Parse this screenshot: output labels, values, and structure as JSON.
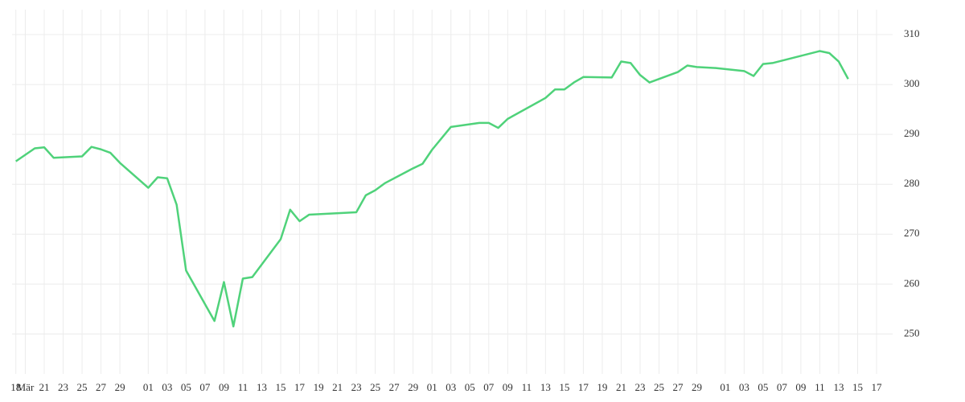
{
  "chart_data": {
    "type": "line",
    "x": [
      0,
      2,
      3,
      4,
      7,
      8,
      9,
      10,
      11,
      14,
      15,
      16,
      17,
      18,
      21,
      22,
      23,
      24,
      25,
      28,
      29,
      30,
      31,
      36,
      37,
      38,
      39,
      42,
      43,
      44,
      46,
      49,
      50,
      51,
      52,
      56,
      57,
      58,
      59,
      60,
      63,
      64,
      65,
      66,
      67,
      70,
      71,
      72,
      74,
      77,
      78,
      79,
      80,
      85,
      86,
      87,
      88
    ],
    "series": [
      {
        "color": "#4fd27a",
        "values": [
          284.6,
          287.2,
          287.4,
          285.3,
          285.6,
          287.5,
          287.0,
          286.3,
          284.3,
          279.3,
          281.4,
          281.2,
          275.9,
          262.7,
          252.6,
          260.4,
          251.5,
          261.1,
          261.4,
          269.0,
          274.9,
          272.6,
          273.9,
          274.4,
          277.8,
          278.8,
          280.2,
          283.2,
          284.1,
          286.9,
          291.5,
          292.3,
          292.3,
          291.3,
          293.1,
          297.3,
          299.0,
          299.0,
          300.4,
          301.5,
          301.4,
          304.6,
          304.3,
          301.9,
          300.4,
          302.5,
          303.8,
          303.5,
          303.3,
          302.7,
          301.7,
          304.1,
          304.3,
          306.7,
          306.3,
          304.6,
          301.1
        ]
      }
    ],
    "xlim": [
      -0.4,
      92.7
    ],
    "xticks": [
      {
        "value": 0,
        "label": "18"
      },
      {
        "value": 1,
        "label": "Mär"
      },
      {
        "value": 3,
        "label": "21"
      },
      {
        "value": 5,
        "label": "23"
      },
      {
        "value": 7,
        "label": "25"
      },
      {
        "value": 9,
        "label": "27"
      },
      {
        "value": 11,
        "label": "29"
      },
      {
        "value": 14,
        "label": "01"
      },
      {
        "value": 16,
        "label": "03"
      },
      {
        "value": 18,
        "label": "05"
      },
      {
        "value": 20,
        "label": "07"
      },
      {
        "value": 22,
        "label": "09"
      },
      {
        "value": 24,
        "label": "11"
      },
      {
        "value": 26,
        "label": "13"
      },
      {
        "value": 28,
        "label": "15"
      },
      {
        "value": 30,
        "label": "17"
      },
      {
        "value": 32,
        "label": "19"
      },
      {
        "value": 34,
        "label": "21"
      },
      {
        "value": 36,
        "label": "23"
      },
      {
        "value": 38,
        "label": "25"
      },
      {
        "value": 40,
        "label": "27"
      },
      {
        "value": 42,
        "label": "29"
      },
      {
        "value": 44,
        "label": "01"
      },
      {
        "value": 46,
        "label": "03"
      },
      {
        "value": 48,
        "label": "05"
      },
      {
        "value": 50,
        "label": "07"
      },
      {
        "value": 52,
        "label": "09"
      },
      {
        "value": 54,
        "label": "11"
      },
      {
        "value": 56,
        "label": "13"
      },
      {
        "value": 58,
        "label": "15"
      },
      {
        "value": 60,
        "label": "17"
      },
      {
        "value": 62,
        "label": "19"
      },
      {
        "value": 64,
        "label": "21"
      },
      {
        "value": 66,
        "label": "23"
      },
      {
        "value": 68,
        "label": "25"
      },
      {
        "value": 70,
        "label": "27"
      },
      {
        "value": 72,
        "label": "29"
      },
      {
        "value": 75,
        "label": "01"
      },
      {
        "value": 77,
        "label": "03"
      },
      {
        "value": 79,
        "label": "05"
      },
      {
        "value": 81,
        "label": "07"
      },
      {
        "value": 83,
        "label": "09"
      },
      {
        "value": 85,
        "label": "11"
      },
      {
        "value": 87,
        "label": "13"
      },
      {
        "value": 89,
        "label": "15"
      },
      {
        "value": 91,
        "label": "17"
      }
    ],
    "ylim": [
      242,
      315
    ],
    "yticks": [
      250,
      260,
      270,
      280,
      290,
      300,
      310
    ],
    "grid": true
  }
}
